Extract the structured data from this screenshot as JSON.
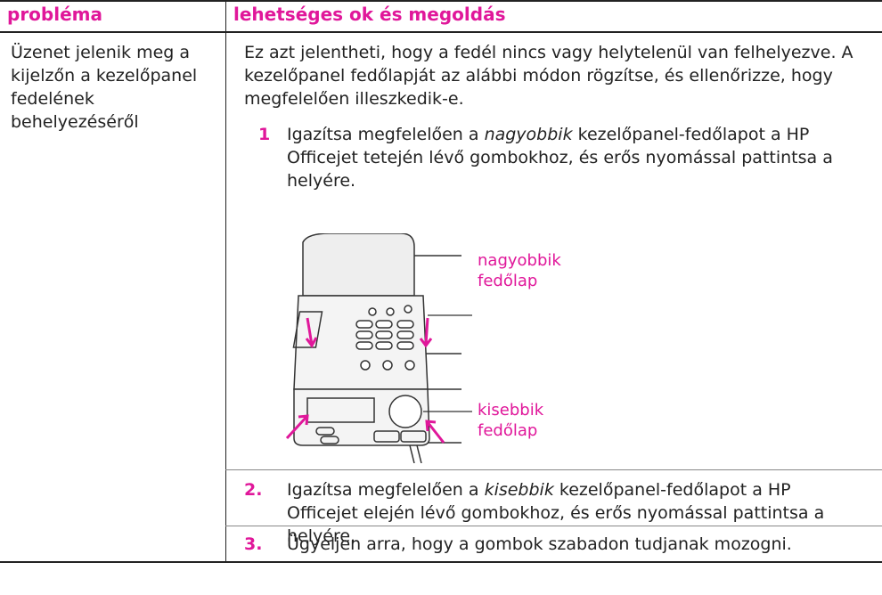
{
  "table": {
    "headers": [
      "probléma",
      "lehetséges ok és megoldás"
    ],
    "problem": "Üzenet jelenik meg a kijelzőn a kezelőpanel fedelének behelyezéséről",
    "intro": "Ez azt jelentheti, hogy a fedél nincs vagy helytelenül van felhelyezve. A kezelőpanel fedőlapját az alábbi módon rögzítse, és ellenőrizze, hogy megfelelően illeszkedik-e.",
    "steps": [
      {
        "number": "1",
        "parts": [
          "Igazítsa megfelelően a ",
          "nagyobbik",
          " kezelőpanel-fedőlapot a HP Officejet tetején lévő gombokhoz, és erős nyomással pattintsa a helyére."
        ]
      },
      {
        "number": "2.",
        "parts": [
          "Igazítsa megfelelően a ",
          "kisebbik",
          " kezelőpanel-fedőlapot a HP Officejet elején lévő gombokhoz, és erős nyomással pattintsa a helyére."
        ]
      },
      {
        "number": "3.",
        "parts": [
          "Ügyeljen arra, hogy a gombok szabadon tudjanak mozogni."
        ]
      }
    ],
    "figure_labels": [
      [
        "nagyobbik",
        "fedőlap"
      ],
      [
        "kisebbik",
        "fedőlap"
      ]
    ]
  }
}
